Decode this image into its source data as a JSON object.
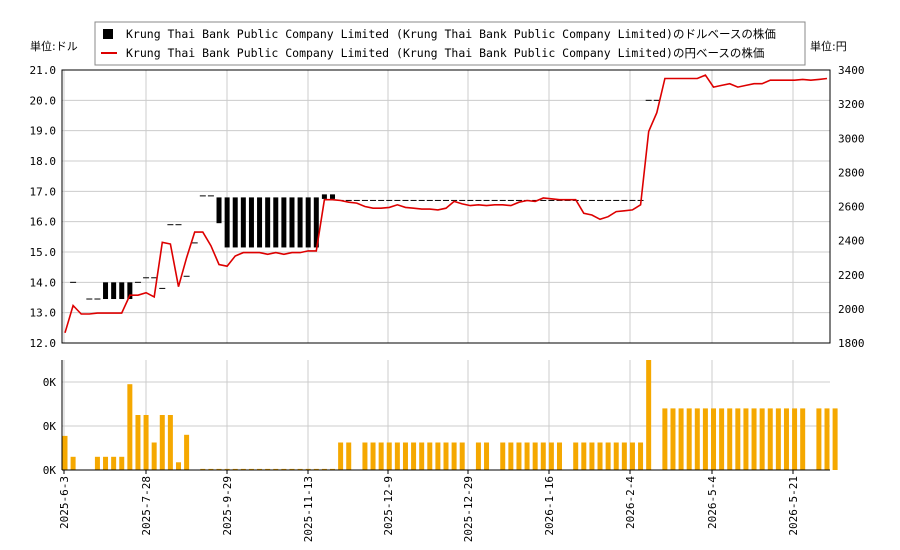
{
  "units": {
    "left": "単位:ドル",
    "right": "単位:円"
  },
  "legend": [
    {
      "label": "Krung Thai Bank Public Company Limited (Krung Thai Bank Public Company Limited)のドルベースの株価",
      "symbol": "square",
      "color": "#000000"
    },
    {
      "label": "Krung Thai Bank Public Company Limited (Krung Thai Bank Public Company Limited)の円ベースの株価",
      "symbol": "line",
      "color": "#dd0000"
    }
  ],
  "chart_data": {
    "type": "line",
    "grid": true,
    "legend_position": "top",
    "x_tick_labels": [
      "2025-6-3",
      "2025-7-28",
      "2025-9-29",
      "2025-11-13",
      "2025-12-9",
      "2025-12-29",
      "2026-1-16",
      "2026-2-4",
      "2026-5-4",
      "2026-5-21"
    ],
    "left_axis": {
      "ylim": [
        12.0,
        21.0
      ],
      "ticks": [
        "12.0",
        "13.0",
        "14.0",
        "15.0",
        "16.0",
        "17.0",
        "18.0",
        "19.0",
        "20.0",
        "21.0"
      ]
    },
    "right_axis": {
      "ylim": [
        1800,
        3400
      ],
      "ticks": [
        "1800",
        "2000",
        "2200",
        "2400",
        "2600",
        "2800",
        "3000",
        "3200",
        "3400"
      ]
    },
    "volume_axis": {
      "ticks": [
        "0K",
        "0K",
        "0K"
      ]
    },
    "series": [
      {
        "name": "円ベースの株価",
        "axis": "right",
        "color": "#dd0000",
        "values": [
          1860,
          2020,
          1970,
          1970,
          1975,
          1975,
          1975,
          1975,
          2080,
          2080,
          2095,
          2070,
          2390,
          2380,
          2130,
          2300,
          2450,
          2450,
          2370,
          2260,
          2250,
          2310,
          2330,
          2330,
          2330,
          2320,
          2330,
          2320,
          2330,
          2330,
          2340,
          2340,
          2640,
          2640,
          2635,
          2625,
          2620,
          2600,
          2590,
          2590,
          2595,
          2610,
          2595,
          2590,
          2585,
          2585,
          2580,
          2590,
          2630,
          2615,
          2605,
          2610,
          2605,
          2610,
          2610,
          2605,
          2625,
          2635,
          2630,
          2650,
          2645,
          2640,
          2640,
          2640,
          2560,
          2550,
          2525,
          2540,
          2570,
          2575,
          2580,
          2610,
          3040,
          3150,
          3350,
          3350,
          3350,
          3350,
          3350,
          3370,
          3300,
          3310,
          3320,
          3300,
          3310,
          3320,
          3320,
          3340,
          3340,
          3340,
          3340,
          3345,
          3340,
          3345,
          3350
        ]
      },
      {
        "name": "ドルベースの株価",
        "axis": "left",
        "color": "#000000",
        "points": [
          {
            "i": 1,
            "high": 14.0,
            "low": 14.0
          },
          {
            "i": 3,
            "high": 13.45,
            "low": 13.45
          },
          {
            "i": 4,
            "high": 13.45,
            "low": 13.45
          },
          {
            "i": 5,
            "high": 14.0,
            "low": 13.45
          },
          {
            "i": 6,
            "high": 14.0,
            "low": 13.45
          },
          {
            "i": 7,
            "high": 14.0,
            "low": 13.45
          },
          {
            "i": 8,
            "high": 14.0,
            "low": 13.45
          },
          {
            "i": 9,
            "high": 14.0,
            "low": 14.0
          },
          {
            "i": 10,
            "high": 14.15,
            "low": 14.15
          },
          {
            "i": 11,
            "high": 14.15,
            "low": 14.15
          },
          {
            "i": 12,
            "high": 13.8,
            "low": 13.8
          },
          {
            "i": 13,
            "high": 15.9,
            "low": 15.9
          },
          {
            "i": 14,
            "high": 15.9,
            "low": 15.9
          },
          {
            "i": 15,
            "high": 14.2,
            "low": 14.2
          },
          {
            "i": 16,
            "high": 15.3,
            "low": 15.3
          },
          {
            "i": 17,
            "high": 16.85,
            "low": 16.85
          },
          {
            "i": 18,
            "high": 16.85,
            "low": 16.85
          },
          {
            "i": 19,
            "high": 16.8,
            "low": 15.95
          },
          {
            "i": 20,
            "high": 16.8,
            "low": 15.15
          },
          {
            "i": 21,
            "high": 16.8,
            "low": 15.15
          },
          {
            "i": 22,
            "high": 16.8,
            "low": 15.15
          },
          {
            "i": 23,
            "high": 16.8,
            "low": 15.15
          },
          {
            "i": 24,
            "high": 16.8,
            "low": 15.15
          },
          {
            "i": 25,
            "high": 16.8,
            "low": 15.15
          },
          {
            "i": 26,
            "high": 16.8,
            "low": 15.15
          },
          {
            "i": 27,
            "high": 16.8,
            "low": 15.15
          },
          {
            "i": 28,
            "high": 16.8,
            "low": 15.15
          },
          {
            "i": 29,
            "high": 16.8,
            "low": 15.15
          },
          {
            "i": 30,
            "high": 16.8,
            "low": 15.15
          },
          {
            "i": 31,
            "high": 16.8,
            "low": 15.15
          },
          {
            "i": 32,
            "high": 16.9,
            "low": 16.75
          },
          {
            "i": 33,
            "high": 16.9,
            "low": 16.75
          },
          {
            "i": 34,
            "high": 16.7,
            "low": 16.7
          },
          {
            "i": 35,
            "high": 16.7,
            "low": 16.7
          },
          {
            "i": 36,
            "high": 16.7,
            "low": 16.7
          },
          {
            "i": 37,
            "high": 16.7,
            "low": 16.7
          },
          {
            "i": 38,
            "high": 16.7,
            "low": 16.7
          },
          {
            "i": 39,
            "high": 16.7,
            "low": 16.7
          },
          {
            "i": 40,
            "high": 16.7,
            "low": 16.7
          },
          {
            "i": 41,
            "high": 16.7,
            "low": 16.7
          },
          {
            "i": 42,
            "high": 16.7,
            "low": 16.7
          },
          {
            "i": 43,
            "high": 16.7,
            "low": 16.7
          },
          {
            "i": 44,
            "high": 16.7,
            "low": 16.7
          },
          {
            "i": 45,
            "high": 16.7,
            "low": 16.7
          },
          {
            "i": 46,
            "high": 16.7,
            "low": 16.7
          },
          {
            "i": 47,
            "high": 16.7,
            "low": 16.7
          },
          {
            "i": 48,
            "high": 16.7,
            "low": 16.7
          },
          {
            "i": 49,
            "high": 16.7,
            "low": 16.7
          },
          {
            "i": 50,
            "high": 16.7,
            "low": 16.7
          },
          {
            "i": 51,
            "high": 16.7,
            "low": 16.7
          },
          {
            "i": 52,
            "high": 16.7,
            "low": 16.7
          },
          {
            "i": 53,
            "high": 16.7,
            "low": 16.7
          },
          {
            "i": 54,
            "high": 16.7,
            "low": 16.7
          },
          {
            "i": 55,
            "high": 16.7,
            "low": 16.7
          },
          {
            "i": 56,
            "high": 16.7,
            "low": 16.7
          },
          {
            "i": 57,
            "high": 16.7,
            "low": 16.7
          },
          {
            "i": 58,
            "high": 16.7,
            "low": 16.7
          },
          {
            "i": 59,
            "high": 16.7,
            "low": 16.7
          },
          {
            "i": 60,
            "high": 16.7,
            "low": 16.7
          },
          {
            "i": 61,
            "high": 16.7,
            "low": 16.7
          },
          {
            "i": 62,
            "high": 16.7,
            "low": 16.7
          },
          {
            "i": 63,
            "high": 16.7,
            "low": 16.7
          },
          {
            "i": 64,
            "high": 16.7,
            "low": 16.7
          },
          {
            "i": 65,
            "high": 16.7,
            "low": 16.7
          },
          {
            "i": 66,
            "high": 16.7,
            "low": 16.7
          },
          {
            "i": 67,
            "high": 16.7,
            "low": 16.7
          },
          {
            "i": 68,
            "high": 16.7,
            "low": 16.7
          },
          {
            "i": 69,
            "high": 16.7,
            "low": 16.7
          },
          {
            "i": 70,
            "high": 16.7,
            "low": 16.7
          },
          {
            "i": 71,
            "high": 16.7,
            "low": 16.7
          },
          {
            "i": 72,
            "high": 20.0,
            "low": 20.0
          },
          {
            "i": 73,
            "high": 20.0,
            "low": 20.0
          },
          {
            "i": 74,
            "high": 21.0,
            "low": 21.0
          },
          {
            "i": 75,
            "high": 21.0,
            "low": 21.0
          },
          {
            "i": 76,
            "high": 21.0,
            "low": 21.0
          },
          {
            "i": 77,
            "high": 21.0,
            "low": 21.0
          },
          {
            "i": 78,
            "high": 21.0,
            "low": 21.0
          },
          {
            "i": 79,
            "high": 21.0,
            "low": 21.0
          },
          {
            "i": 80,
            "high": 21.0,
            "low": 21.0
          },
          {
            "i": 81,
            "high": 21.0,
            "low": 21.0
          },
          {
            "i": 82,
            "high": 21.0,
            "low": 21.0
          },
          {
            "i": 83,
            "high": 21.0,
            "low": 21.0
          },
          {
            "i": 84,
            "high": 21.0,
            "low": 21.0
          },
          {
            "i": 85,
            "high": 21.0,
            "low": 21.0
          },
          {
            "i": 86,
            "high": 21.0,
            "low": 21.0
          },
          {
            "i": 87,
            "high": 21.0,
            "low": 21.0
          },
          {
            "i": 88,
            "high": 21.0,
            "low": 21.0
          },
          {
            "i": 89,
            "high": 21.0,
            "low": 21.0
          },
          {
            "i": 90,
            "high": 21.0,
            "low": 21.0
          },
          {
            "i": 91,
            "high": 21.0,
            "low": 21.0
          },
          {
            "i": 92,
            "high": 21.0,
            "low": 21.0
          },
          {
            "i": 93,
            "high": 21.0,
            "low": 21.0
          },
          {
            "i": 94,
            "high": 21.0,
            "low": 21.0
          }
        ]
      },
      {
        "name": "volume",
        "panel": "volume",
        "color": "#f5a800",
        "fraction": [
          0.31,
          0.12,
          0,
          0,
          0.12,
          0.12,
          0.12,
          0.12,
          0.78,
          0.5,
          0.5,
          0.25,
          0.5,
          0.5,
          0.07,
          0.32,
          0,
          0.01,
          0.01,
          0.01,
          0.01,
          0.01,
          0.01,
          0.01,
          0.01,
          0.01,
          0.01,
          0.01,
          0.01,
          0.01,
          0.01,
          0.01,
          0.01,
          0.01,
          0.25,
          0.25,
          0,
          0.25,
          0.25,
          0.25,
          0.25,
          0.25,
          0.25,
          0.25,
          0.25,
          0.25,
          0.25,
          0.25,
          0.25,
          0.25,
          0,
          0.25,
          0.25,
          0,
          0.25,
          0.25,
          0.25,
          0.25,
          0.25,
          0.25,
          0.25,
          0.25,
          0,
          0.25,
          0.25,
          0.25,
          0.25,
          0.25,
          0.25,
          0.25,
          0.25,
          0.25,
          1.0,
          0,
          0.56,
          0.56,
          0.56,
          0.56,
          0.56,
          0.56,
          0.56,
          0.56,
          0.56,
          0.56,
          0.56,
          0.56,
          0.56,
          0.56,
          0.56,
          0.56,
          0.56,
          0.56,
          0,
          0.56,
          0.56,
          0.56
        ]
      }
    ]
  }
}
